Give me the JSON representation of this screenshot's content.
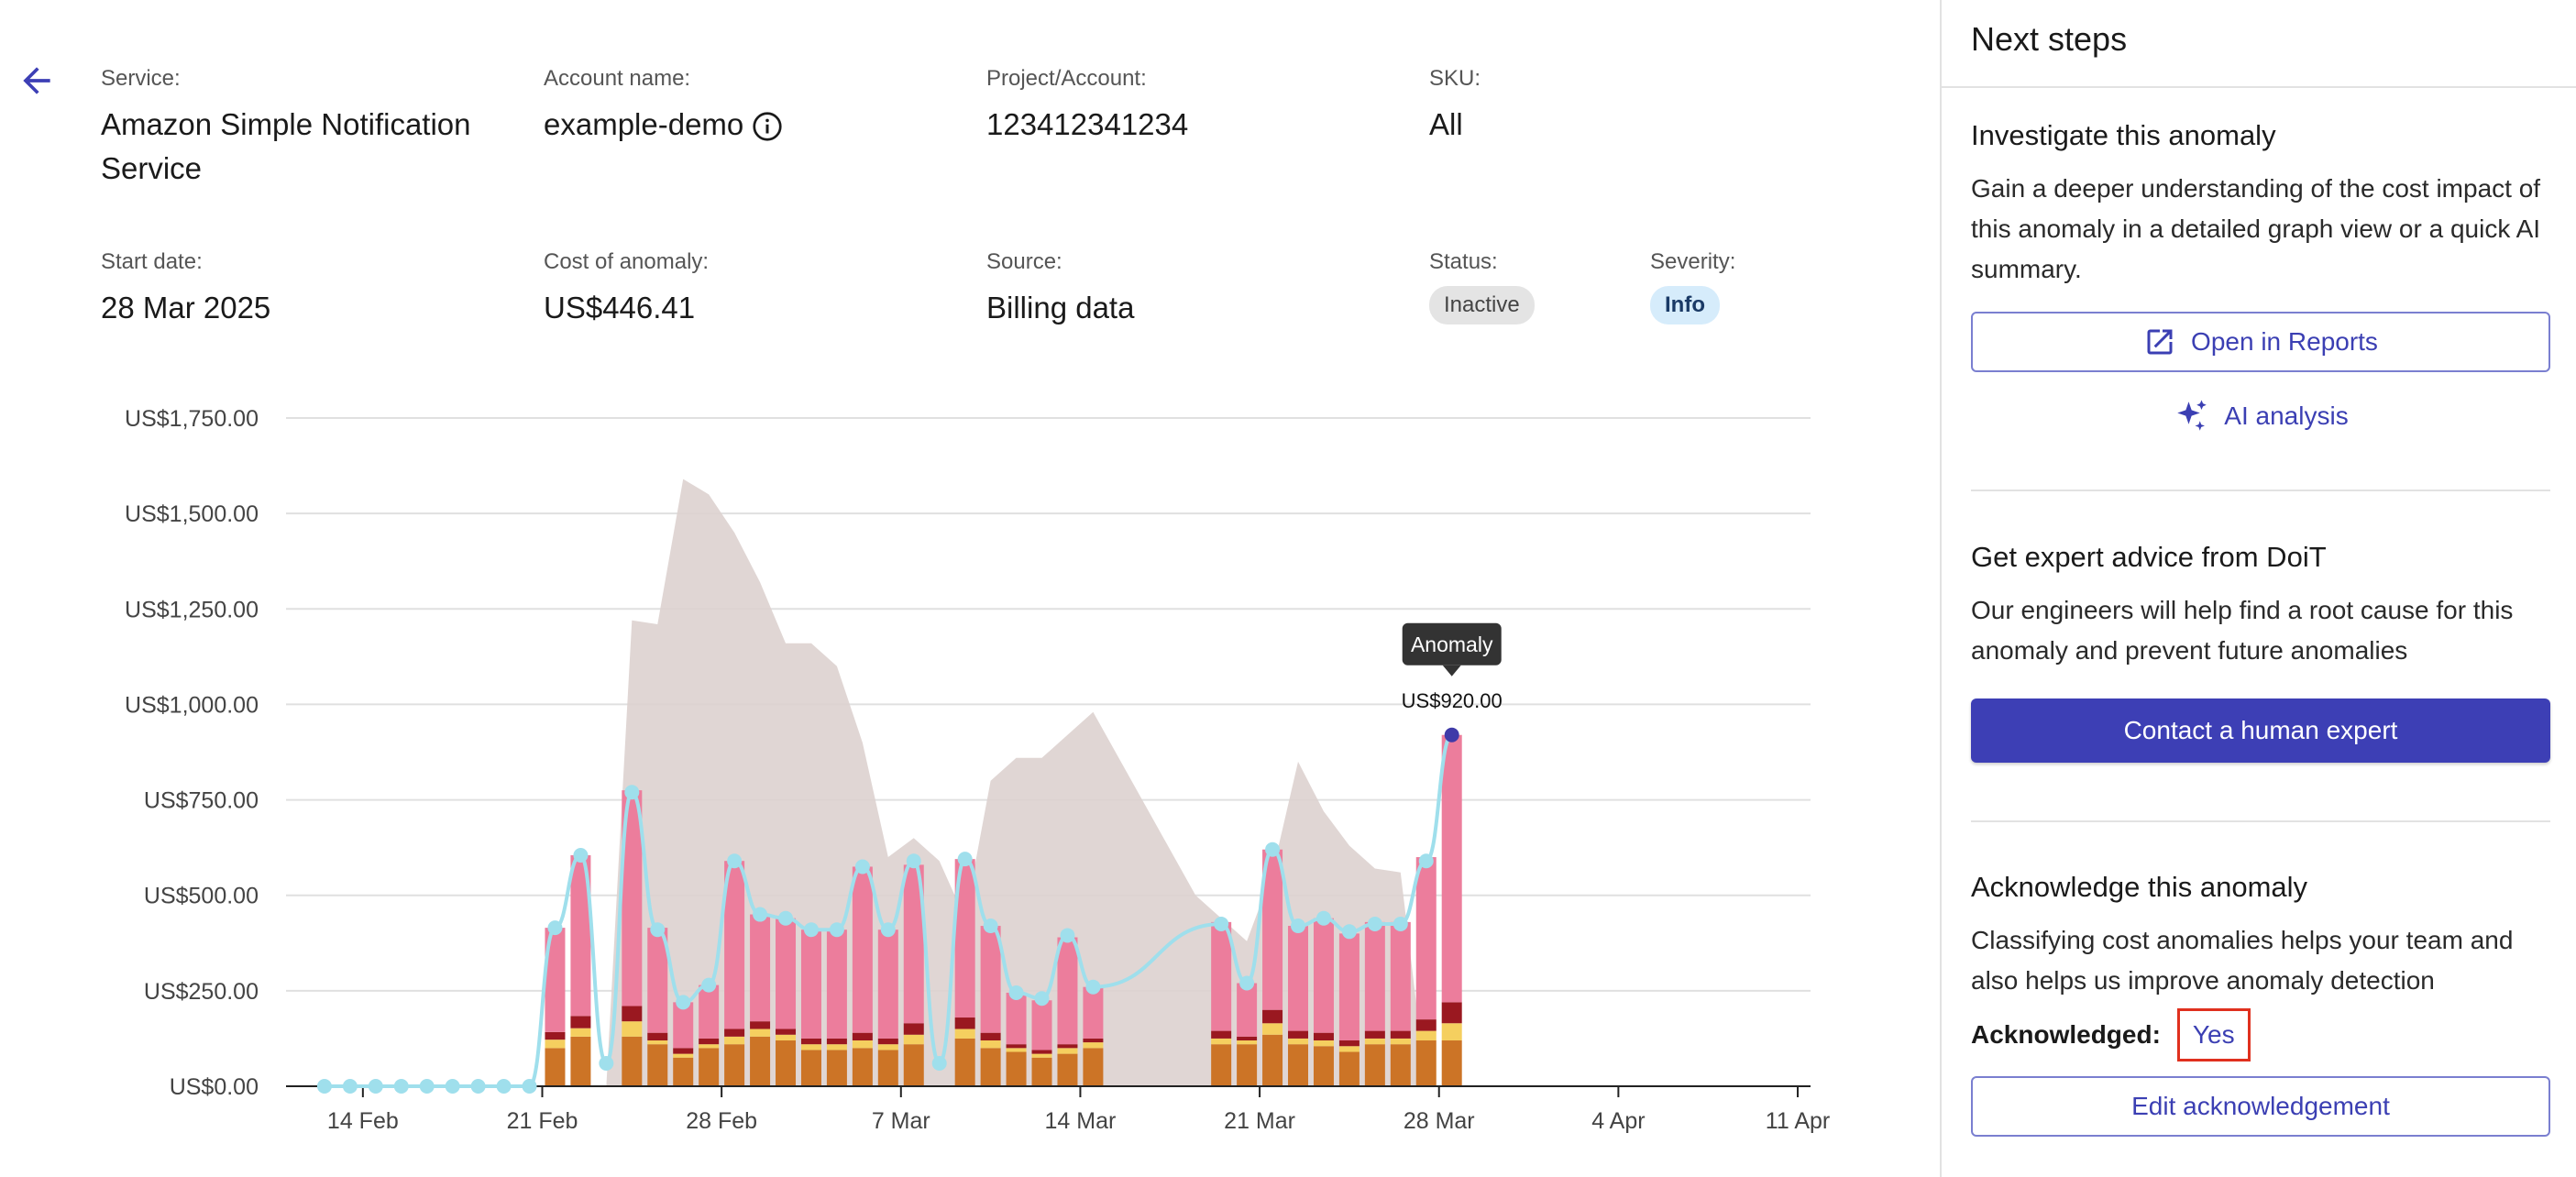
{
  "details": {
    "service_label": "Service:",
    "service_line1": "Amazon Simple Notification",
    "service_line2": "Service",
    "account_label": "Account name:",
    "account_value": "example-demo",
    "project_label": "Project/Account:",
    "project_value": "123412341234",
    "sku_label": "SKU:",
    "sku_value": "All",
    "start_label": "Start date:",
    "start_value": "28 Mar 2025",
    "cost_label": "Cost of anomaly:",
    "cost_value": "US$446.41",
    "source_label": "Source:",
    "source_value": "Billing data",
    "status_label": "Status:",
    "status_value": "Inactive",
    "severity_label": "Severity:",
    "severity_value": "Info"
  },
  "icons": {
    "back": "arrow-left-icon",
    "info": "info-icon",
    "open": "open-external-icon",
    "ai": "sparkle-icon"
  },
  "colors": {
    "accent": "#3d3fb5",
    "pink": "#ec7d9c",
    "orange": "#cc7426",
    "yellow": "#f5cf5f",
    "darkred": "#9a1820",
    "line": "#9fdfec",
    "band": "#ddd1cf",
    "anomaly_point": "#3f3aa8"
  },
  "chart_data": {
    "type": "bar",
    "yticks": [
      "US$0.00",
      "US$250.00",
      "US$500.00",
      "US$750.00",
      "US$1,000.00",
      "US$1,250.00",
      "US$1,500.00",
      "US$1,750.00"
    ],
    "ylim": [
      0,
      1750
    ],
    "xticks": [
      "14 Feb",
      "21 Feb",
      "28 Feb",
      "7 Mar",
      "14 Mar",
      "21 Mar",
      "28 Mar",
      "4 Apr",
      "11 Apr"
    ],
    "xtick_days": [
      0,
      7,
      14,
      21,
      28,
      35,
      42,
      49,
      56
    ],
    "x_range_days": [
      -3,
      56.5
    ],
    "bar_days": [
      20,
      21,
      23,
      24,
      25,
      26,
      27,
      28,
      29,
      30,
      31,
      32,
      33,
      34,
      36,
      37,
      38,
      39,
      40,
      41,
      42
    ],
    "bar_days_b": [
      7.5,
      8.5,
      10.5,
      11.5,
      13.5,
      14.5,
      15.5,
      16.5,
      17.5,
      18.5,
      19.5,
      20.5,
      23.5,
      24.5,
      25.5,
      26.5,
      28.5,
      29.5,
      30.5,
      31.5,
      32.5
    ],
    "bar_days_c": [
      35.5,
      36.5,
      37.5,
      38.5,
      39.5,
      40.5,
      41.5,
      42.5,
      43.5,
      44.5
    ],
    "bars": [
      {
        "day": 7.5,
        "orange": 100,
        "yellow": 22,
        "darkred": 20,
        "pink": 273
      },
      {
        "day": 8.5,
        "orange": 130,
        "yellow": 22,
        "darkred": 32,
        "pink": 421
      },
      {
        "day": 10.5,
        "orange": 130,
        "yellow": 40,
        "darkred": 40,
        "pink": 565
      },
      {
        "day": 11.5,
        "orange": 110,
        "yellow": 10,
        "darkred": 20,
        "pink": 275
      },
      {
        "day": 12.5,
        "orange": 75,
        "yellow": 10,
        "darkred": 15,
        "pink": 120
      },
      {
        "day": 13.5,
        "orange": 100,
        "yellow": 10,
        "darkred": 15,
        "pink": 140
      },
      {
        "day": 14.5,
        "orange": 110,
        "yellow": 20,
        "darkred": 20,
        "pink": 440
      },
      {
        "day": 15.5,
        "orange": 130,
        "yellow": 20,
        "darkred": 20,
        "pink": 280
      },
      {
        "day": 16.5,
        "orange": 120,
        "yellow": 15,
        "darkred": 15,
        "pink": 290
      },
      {
        "day": 17.5,
        "orange": 95,
        "yellow": 15,
        "darkred": 15,
        "pink": 285
      },
      {
        "day": 18.5,
        "orange": 95,
        "yellow": 15,
        "darkred": 15,
        "pink": 285
      },
      {
        "day": 19.5,
        "orange": 100,
        "yellow": 20,
        "darkred": 20,
        "pink": 435
      },
      {
        "day": 20.5,
        "orange": 95,
        "yellow": 15,
        "darkred": 15,
        "pink": 285
      },
      {
        "day": 21.5,
        "orange": 110,
        "yellow": 25,
        "darkred": 30,
        "pink": 415
      },
      {
        "day": 23.5,
        "orange": 125,
        "yellow": 25,
        "darkred": 30,
        "pink": 415
      },
      {
        "day": 24.5,
        "orange": 100,
        "yellow": 20,
        "darkred": 20,
        "pink": 280
      },
      {
        "day": 25.5,
        "orange": 90,
        "yellow": 10,
        "darkred": 10,
        "pink": 135
      },
      {
        "day": 26.5,
        "orange": 75,
        "yellow": 10,
        "darkred": 10,
        "pink": 130
      },
      {
        "day": 27.5,
        "orange": 85,
        "yellow": 15,
        "darkred": 10,
        "pink": 280
      },
      {
        "day": 28.5,
        "orange": 100,
        "yellow": 15,
        "darkred": 10,
        "pink": 135
      }
    ],
    "bars2": [
      {
        "day": 33.5,
        "orange": 110,
        "yellow": 15,
        "darkred": 20,
        "pink": 285
      },
      {
        "day": 34.5,
        "orange": 110,
        "yellow": 10,
        "darkred": 10,
        "pink": 140
      },
      {
        "day": 35.5,
        "orange": 135,
        "yellow": 30,
        "darkred": 35,
        "pink": 420
      },
      {
        "day": 36.5,
        "orange": 110,
        "yellow": 15,
        "darkred": 20,
        "pink": 275
      },
      {
        "day": 37.5,
        "orange": 105,
        "yellow": 15,
        "darkred": 20,
        "pink": 300
      },
      {
        "day": 38.5,
        "orange": 90,
        "yellow": 15,
        "darkred": 15,
        "pink": 280
      },
      {
        "day": 39.5,
        "orange": 110,
        "yellow": 15,
        "darkred": 20,
        "pink": 285
      },
      {
        "day": 40.5,
        "orange": 110,
        "yellow": 15,
        "darkred": 20,
        "pink": 285
      },
      {
        "day": 41.5,
        "orange": 120,
        "yellow": 25,
        "darkred": 30,
        "pink": 425
      },
      {
        "day": 42.5,
        "orange": 120,
        "yellow": 45,
        "darkred": 55,
        "pink": 700
      }
    ],
    "line_points": [
      {
        "day": -1.5,
        "v": 0
      },
      {
        "day": -0.5,
        "v": 0
      },
      {
        "day": 0.5,
        "v": 0
      },
      {
        "day": 1.5,
        "v": 0
      },
      {
        "day": 2.5,
        "v": 0
      },
      {
        "day": 3.5,
        "v": 0
      },
      {
        "day": 4.5,
        "v": 0
      },
      {
        "day": 5.5,
        "v": 0
      },
      {
        "day": 6.5,
        "v": 0
      },
      {
        "day": 7.5,
        "v": 415
      },
      {
        "day": 8.5,
        "v": 605
      },
      {
        "day": 9.5,
        "v": 60
      },
      {
        "day": 10.5,
        "v": 770
      },
      {
        "day": 11.5,
        "v": 410
      },
      {
        "day": 12.5,
        "v": 220
      },
      {
        "day": 13.5,
        "v": 265
      },
      {
        "day": 14.5,
        "v": 590
      },
      {
        "day": 15.5,
        "v": 450
      },
      {
        "day": 16.5,
        "v": 440
      },
      {
        "day": 17.5,
        "v": 410
      },
      {
        "day": 18.5,
        "v": 410
      },
      {
        "day": 19.5,
        "v": 575
      },
      {
        "day": 20.5,
        "v": 410
      },
      {
        "day": 21.5,
        "v": 590
      },
      {
        "day": 22.5,
        "v": 60
      },
      {
        "day": 23.5,
        "v": 595
      },
      {
        "day": 24.5,
        "v": 420
      },
      {
        "day": 25.5,
        "v": 245
      },
      {
        "day": 26.5,
        "v": 230
      },
      {
        "day": 27.5,
        "v": 395
      },
      {
        "day": 28.5,
        "v": 260
      },
      {
        "day": 33.5,
        "v": 425
      },
      {
        "day": 34.5,
        "v": 270
      },
      {
        "day": 35.5,
        "v": 620
      },
      {
        "day": 36.5,
        "v": 420
      },
      {
        "day": 37.5,
        "v": 440
      },
      {
        "day": 38.5,
        "v": 405
      },
      {
        "day": 39.5,
        "v": 425
      },
      {
        "day": 40.5,
        "v": 425
      },
      {
        "day": 41.5,
        "v": 590
      },
      {
        "day": 42.5,
        "v": 920
      }
    ],
    "band_points": [
      {
        "day": 8.5,
        "v": 0
      },
      {
        "day": 9.5,
        "v": 0
      },
      {
        "day": 10.5,
        "v": 1220
      },
      {
        "day": 11.5,
        "v": 1210
      },
      {
        "day": 12.5,
        "v": 1590
      },
      {
        "day": 13.5,
        "v": 1550
      },
      {
        "day": 14.5,
        "v": 1450
      },
      {
        "day": 15.5,
        "v": 1320
      },
      {
        "day": 16.5,
        "v": 1160
      },
      {
        "day": 17.5,
        "v": 1160
      },
      {
        "day": 18.5,
        "v": 1100
      },
      {
        "day": 19.5,
        "v": 900
      },
      {
        "day": 20.5,
        "v": 600
      },
      {
        "day": 21.5,
        "v": 650
      },
      {
        "day": 22.5,
        "v": 590
      },
      {
        "day": 23.5,
        "v": 440
      },
      {
        "day": 24.5,
        "v": 800
      },
      {
        "day": 25.5,
        "v": 860
      },
      {
        "day": 26.5,
        "v": 860
      },
      {
        "day": 27.5,
        "v": 920
      },
      {
        "day": 28.5,
        "v": 980
      },
      {
        "day": 29.5,
        "v": 860
      },
      {
        "day": 30.5,
        "v": 740
      },
      {
        "day": 31.5,
        "v": 620
      },
      {
        "day": 32.5,
        "v": 500
      },
      {
        "day": 33.5,
        "v": 440
      },
      {
        "day": 34.5,
        "v": 380
      },
      {
        "day": 35.5,
        "v": 560
      },
      {
        "day": 36.5,
        "v": 850
      },
      {
        "day": 37.5,
        "v": 720
      },
      {
        "day": 38.5,
        "v": 630
      },
      {
        "day": 39.5,
        "v": 570
      },
      {
        "day": 40.5,
        "v": 560
      },
      {
        "day": 41.5,
        "v": 0
      }
    ],
    "anomaly": {
      "day": 42.5,
      "value": 920,
      "tooltip": "Anomaly",
      "label": "US$920.00"
    }
  },
  "panel": {
    "title": "Next steps",
    "investigate_title": "Investigate this anomaly",
    "investigate_text": "Gain a deeper understanding of the cost impact of this anomaly in a detailed graph view or a quick AI summary.",
    "open_reports": "Open in Reports",
    "ai_analysis": "AI analysis",
    "expert_title": "Get expert advice from DoiT",
    "expert_text": "Our engineers will help find a root cause for this anomaly and prevent future anomalies",
    "contact": "Contact a human expert",
    "ack_title": "Acknowledge this anomaly",
    "ack_text": "Classifying cost anomalies helps your team and also helps us improve anomaly detection",
    "ack_label": "Acknowledged:",
    "ack_value": "Yes",
    "edit_ack": "Edit acknowledgement"
  }
}
